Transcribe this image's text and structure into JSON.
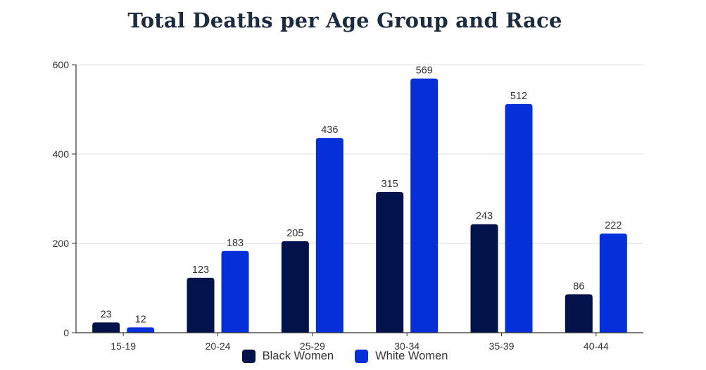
{
  "chart_data": {
    "type": "bar",
    "title": "Total Deaths per Age Group and Race",
    "categories": [
      "15-19",
      "20-24",
      "25-29",
      "30-34",
      "35-39",
      "40-44"
    ],
    "series": [
      {
        "name": "Black Women",
        "color": "#03124a",
        "values": [
          23,
          123,
          205,
          315,
          243,
          86
        ]
      },
      {
        "name": "White Women",
        "color": "#0530d9",
        "values": [
          12,
          183,
          436,
          569,
          512,
          222
        ]
      }
    ],
    "ylim": [
      0,
      600
    ],
    "yticks": [
      0,
      200,
      400,
      600
    ],
    "grid": true,
    "legend_position": "bottom"
  }
}
